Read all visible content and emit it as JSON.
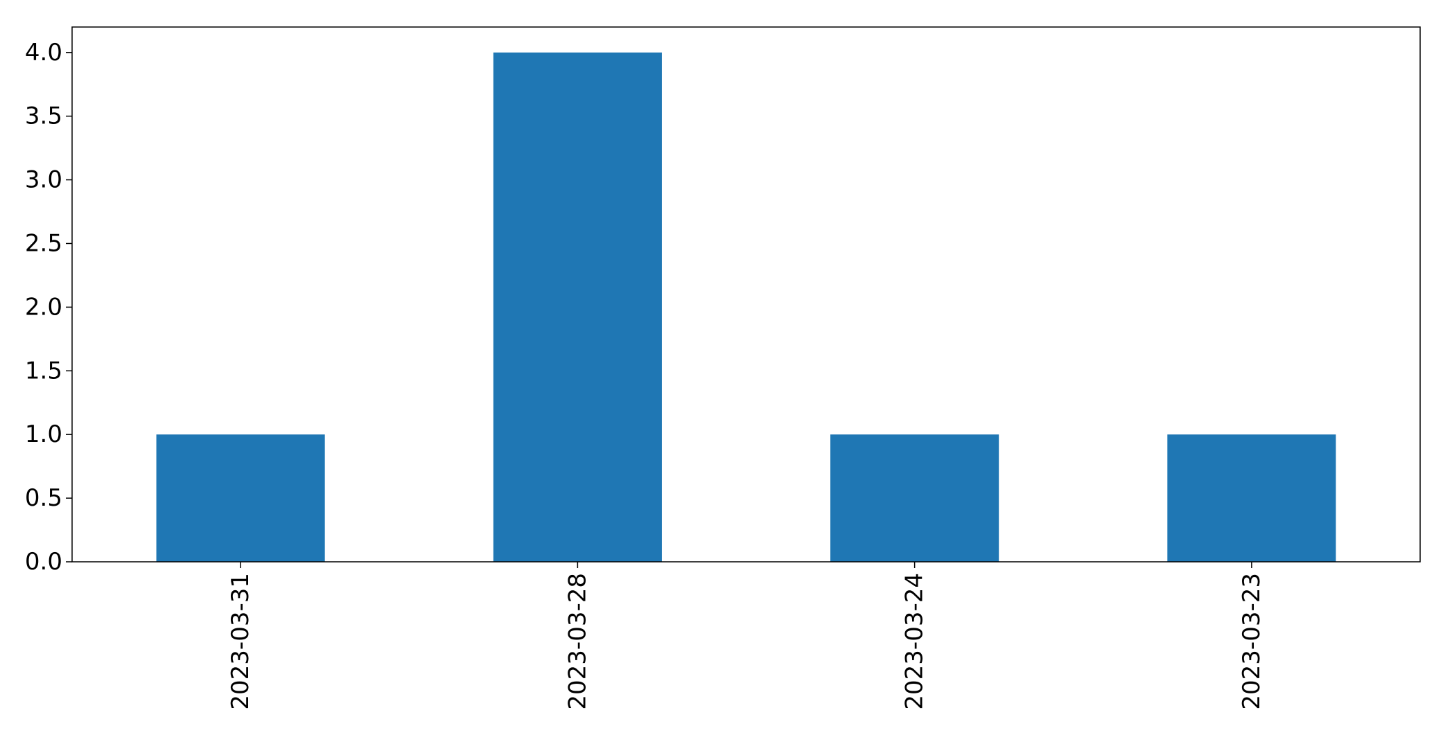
{
  "chart_data": {
    "type": "bar",
    "categories": [
      "2023-03-31",
      "2023-03-28",
      "2023-03-24",
      "2023-03-23"
    ],
    "values": [
      1,
      4,
      1,
      1
    ],
    "title": "",
    "xlabel": "",
    "ylabel": "",
    "ylim": [
      0,
      4.2
    ],
    "yticks": [
      0.0,
      0.5,
      1.0,
      1.5,
      2.0,
      2.5,
      3.0,
      3.5,
      4.0
    ],
    "ytick_labels": [
      "0.0",
      "0.5",
      "1.0",
      "1.5",
      "2.0",
      "2.5",
      "3.0",
      "3.5",
      "4.0"
    ],
    "bar_color": "#1f77b4",
    "grid": false,
    "legend": "none",
    "xtick_rotation": "vertical"
  }
}
